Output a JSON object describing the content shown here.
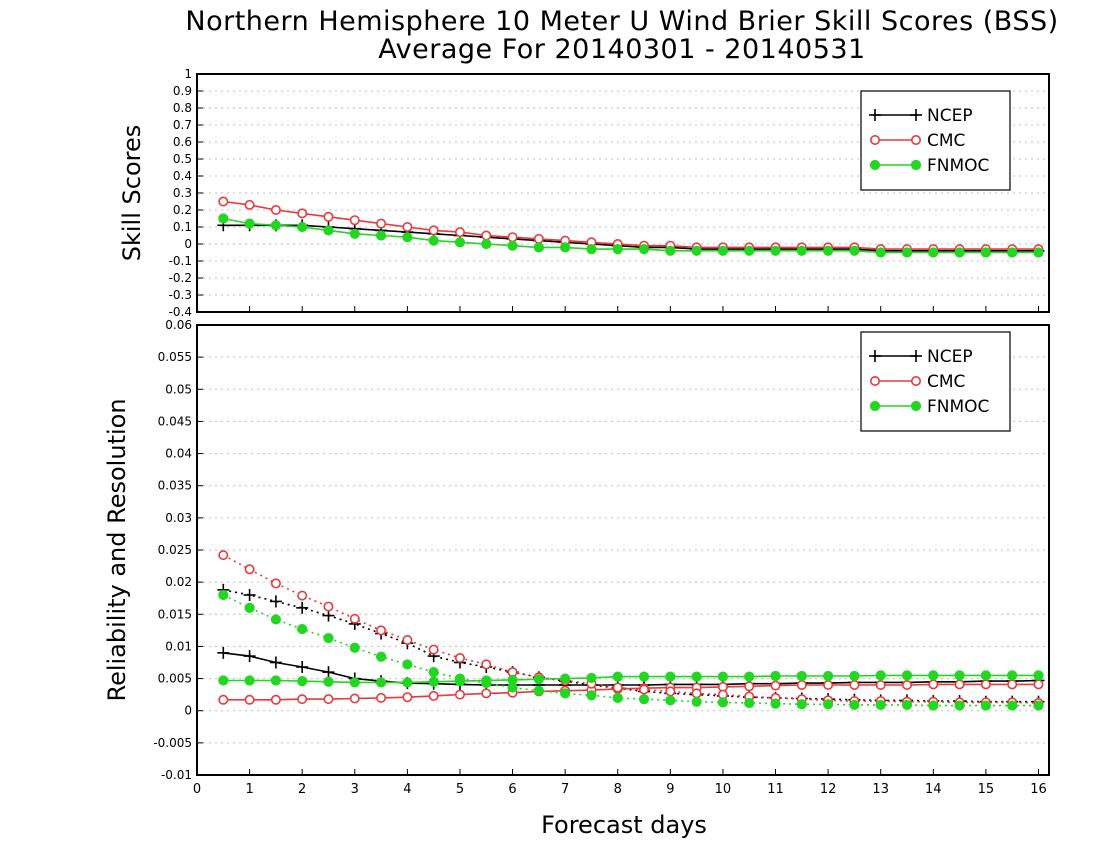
{
  "title": {
    "line1": "Northern Hemisphere 10 Meter U Wind Brier Skill Scores (BSS)",
    "line2": "Average For 20140301 - 20140531"
  },
  "xaxis": {
    "label": "Forecast days",
    "ticks": [
      "0",
      "1",
      "2",
      "3",
      "4",
      "5",
      "6",
      "7",
      "8",
      "9",
      "10",
      "11",
      "12",
      "13",
      "14",
      "15",
      "16"
    ],
    "range": [
      0,
      16.2
    ]
  },
  "colors": {
    "NCEP": "#000000",
    "CMC": "#e8393c",
    "FNMOC": "#22d622"
  },
  "chart_data": [
    {
      "type": "line",
      "ylabel": "Skill Scores",
      "ylim": [
        -0.4,
        1
      ],
      "yticks": [
        "1",
        "0.9",
        "0.8",
        "0.7",
        "0.6",
        "0.5",
        "0.4",
        "0.3",
        "0.2",
        "0.1",
        "0",
        "-0.1",
        "-0.2",
        "-0.3",
        "-0.4"
      ],
      "grid": true,
      "legend_position": "top-right",
      "x": [
        0.5,
        1,
        1.5,
        2,
        2.5,
        3,
        3.5,
        4,
        4.5,
        5,
        5.5,
        6,
        6.5,
        7,
        7.5,
        8,
        8.5,
        9,
        9.5,
        10,
        10.5,
        11,
        11.5,
        12,
        12.5,
        13,
        13.5,
        14,
        14.5,
        15,
        15.5,
        16
      ],
      "series": [
        {
          "name": "NCEP",
          "marker": "plus",
          "line": "solid",
          "values": [
            0.11,
            0.11,
            0.11,
            0.11,
            0.1,
            0.09,
            0.08,
            0.07,
            0.06,
            0.05,
            0.04,
            0.03,
            0.02,
            0.01,
            0.0,
            -0.01,
            -0.02,
            -0.02,
            -0.03,
            -0.03,
            -0.03,
            -0.03,
            -0.03,
            -0.03,
            -0.03,
            -0.04,
            -0.04,
            -0.04,
            -0.04,
            -0.04,
            -0.04,
            -0.04
          ]
        },
        {
          "name": "CMC",
          "marker": "open-circle",
          "line": "solid",
          "values": [
            0.25,
            0.23,
            0.2,
            0.18,
            0.16,
            0.14,
            0.12,
            0.1,
            0.08,
            0.07,
            0.05,
            0.04,
            0.03,
            0.02,
            0.01,
            0.0,
            -0.01,
            -0.01,
            -0.02,
            -0.02,
            -0.02,
            -0.02,
            -0.02,
            -0.02,
            -0.02,
            -0.03,
            -0.03,
            -0.03,
            -0.03,
            -0.03,
            -0.03,
            -0.03
          ]
        },
        {
          "name": "FNMOC",
          "marker": "filled-circle",
          "line": "solid",
          "values": [
            0.15,
            0.12,
            0.11,
            0.1,
            0.08,
            0.06,
            0.05,
            0.04,
            0.02,
            0.01,
            0.0,
            -0.01,
            -0.02,
            -0.02,
            -0.03,
            -0.03,
            -0.03,
            -0.04,
            -0.04,
            -0.04,
            -0.04,
            -0.04,
            -0.04,
            -0.04,
            -0.04,
            -0.05,
            -0.05,
            -0.05,
            -0.05,
            -0.05,
            -0.05,
            -0.05
          ]
        }
      ]
    },
    {
      "type": "line",
      "ylabel": "Reliability and Resolution",
      "ylim": [
        -0.01,
        0.06
      ],
      "yticks": [
        "0.06",
        "0.055",
        "0.05",
        "0.045",
        "0.04",
        "0.035",
        "0.03",
        "0.025",
        "0.02",
        "0.015",
        "0.01",
        "0.005",
        "0",
        "-0.005",
        "-0.01"
      ],
      "grid": true,
      "legend_position": "top-right",
      "x": [
        0.5,
        1,
        1.5,
        2,
        2.5,
        3,
        3.5,
        4,
        4.5,
        5,
        5.5,
        6,
        6.5,
        7,
        7.5,
        8,
        8.5,
        9,
        9.5,
        10,
        10.5,
        11,
        11.5,
        12,
        12.5,
        13,
        13.5,
        14,
        14.5,
        15,
        15.5,
        16
      ],
      "series": [
        {
          "name": "NCEP",
          "marker": "plus",
          "line": "solid",
          "values": [
            0.009,
            0.0085,
            0.0075,
            0.0068,
            0.006,
            0.005,
            0.0046,
            0.0043,
            0.0042,
            0.0041,
            0.004,
            0.004,
            0.004,
            0.004,
            0.004,
            0.004,
            0.004,
            0.0041,
            0.0041,
            0.0041,
            0.0042,
            0.0042,
            0.0043,
            0.0043,
            0.0044,
            0.0044,
            0.0044,
            0.0045,
            0.0045,
            0.0046,
            0.0046,
            0.0047
          ]
        },
        {
          "name": "NCEP",
          "marker": "plus",
          "line": "dotted",
          "values": [
            0.0188,
            0.018,
            0.017,
            0.016,
            0.0148,
            0.0135,
            0.012,
            0.0105,
            0.0085,
            0.0075,
            0.0068,
            0.006,
            0.0052,
            0.0046,
            0.004,
            0.0035,
            0.003,
            0.0027,
            0.0025,
            0.0023,
            0.0021,
            0.002,
            0.0019,
            0.0018,
            0.0017,
            0.0016,
            0.0016,
            0.0015,
            0.0015,
            0.0014,
            0.0014,
            0.0014
          ]
        },
        {
          "name": "CMC",
          "marker": "open-circle",
          "line": "solid",
          "values": [
            0.0017,
            0.0017,
            0.0017,
            0.0018,
            0.0018,
            0.0019,
            0.002,
            0.0021,
            0.0023,
            0.0025,
            0.0027,
            0.0028,
            0.003,
            0.0031,
            0.0032,
            0.0034,
            0.0035,
            0.0036,
            0.0036,
            0.0037,
            0.0038,
            0.0039,
            0.004,
            0.004,
            0.004,
            0.004,
            0.004,
            0.0041,
            0.0041,
            0.0041,
            0.0041,
            0.0041
          ]
        },
        {
          "name": "CMC",
          "marker": "open-circle",
          "line": "dotted",
          "values": [
            0.0242,
            0.022,
            0.0198,
            0.0179,
            0.0162,
            0.0143,
            0.0125,
            0.011,
            0.0095,
            0.0082,
            0.0072,
            0.006,
            0.0052,
            0.0047,
            0.0042,
            0.0036,
            0.0033,
            0.003,
            0.0027,
            0.0025,
            0.0022,
            0.002,
            0.0018,
            0.0016,
            0.0015,
            0.0015,
            0.0014,
            0.0014,
            0.0013,
            0.0013,
            0.0013,
            0.0012
          ]
        },
        {
          "name": "FNMOC",
          "marker": "filled-circle",
          "line": "solid",
          "values": [
            0.0047,
            0.0047,
            0.0047,
            0.0046,
            0.0045,
            0.0044,
            0.0044,
            0.0044,
            0.0045,
            0.0046,
            0.0047,
            0.0048,
            0.0049,
            0.005,
            0.0051,
            0.0053,
            0.0053,
            0.0053,
            0.0053,
            0.0053,
            0.0053,
            0.0054,
            0.0054,
            0.0054,
            0.0054,
            0.0055,
            0.0055,
            0.0055,
            0.0055,
            0.0055,
            0.0055,
            0.0055
          ]
        },
        {
          "name": "FNMOC",
          "marker": "filled-circle",
          "line": "dotted",
          "values": [
            0.018,
            0.016,
            0.0142,
            0.0127,
            0.0113,
            0.0098,
            0.0084,
            0.0072,
            0.006,
            0.005,
            0.0043,
            0.0036,
            0.0031,
            0.0027,
            0.0024,
            0.002,
            0.0018,
            0.0016,
            0.0014,
            0.0013,
            0.0012,
            0.0011,
            0.001,
            0.001,
            0.0009,
            0.0009,
            0.0009,
            0.0008,
            0.0008,
            0.0008,
            0.0008,
            0.0008
          ]
        }
      ]
    }
  ]
}
